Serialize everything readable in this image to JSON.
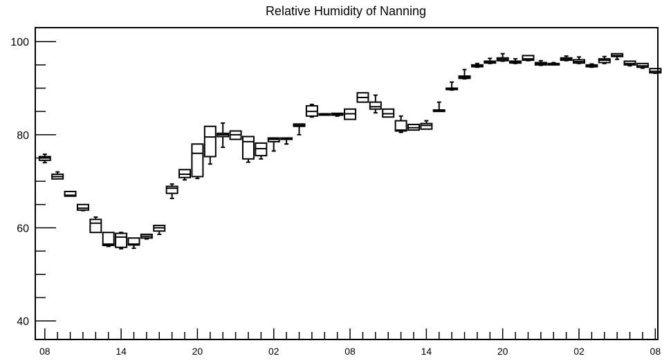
{
  "chart_data": {
    "type": "box",
    "title": "Relative Humidity of Nanning",
    "xlabel": "",
    "ylabel": "",
    "ylim": [
      36,
      103
    ],
    "yticks": [
      40,
      60,
      80,
      100
    ],
    "x_tick_labels": [
      "08",
      "14",
      "20",
      "02",
      "08",
      "14",
      "20",
      "02",
      "08"
    ],
    "x_index_range": [
      -0.75,
      48.2
    ],
    "grid": false,
    "legend": "none",
    "colors": {
      "stroke": "#000000",
      "background": "#ffffff"
    },
    "boxes": [
      {
        "x": 0,
        "min": 74.0,
        "q1": 74.5,
        "median": 75.0,
        "q3": 75.3,
        "max": 75.8
      },
      {
        "x": 1,
        "min": 70.5,
        "q1": 70.5,
        "median": 71.0,
        "q3": 71.5,
        "max": 72.0
      },
      {
        "x": 2,
        "min": 66.8,
        "q1": 66.8,
        "median": 67.0,
        "q3": 67.8,
        "max": 67.8
      },
      {
        "x": 3,
        "min": 63.7,
        "q1": 63.8,
        "median": 64.2,
        "q3": 65.0,
        "max": 65.0
      },
      {
        "x": 4,
        "min": 59.0,
        "q1": 59.0,
        "median": 61.0,
        "q3": 61.8,
        "max": 62.3
      },
      {
        "x": 5,
        "min": 56.0,
        "q1": 56.2,
        "median": 56.5,
        "q3": 59.0,
        "max": 59.0
      },
      {
        "x": 6,
        "min": 55.5,
        "q1": 55.8,
        "median": 58.0,
        "q3": 58.8,
        "max": 59.0
      },
      {
        "x": 7,
        "min": 55.6,
        "q1": 56.3,
        "median": 56.5,
        "q3": 57.8,
        "max": 57.8
      },
      {
        "x": 8,
        "min": 57.6,
        "q1": 57.8,
        "median": 58.2,
        "q3": 58.6,
        "max": 58.6
      },
      {
        "x": 9,
        "min": 58.6,
        "q1": 59.3,
        "median": 60.0,
        "q3": 60.5,
        "max": 60.5
      },
      {
        "x": 10,
        "min": 66.3,
        "q1": 67.4,
        "median": 68.5,
        "q3": 68.9,
        "max": 69.4
      },
      {
        "x": 11,
        "min": 70.3,
        "q1": 70.8,
        "median": 71.5,
        "q3": 72.5,
        "max": 72.5
      },
      {
        "x": 12,
        "min": 70.6,
        "q1": 71.0,
        "median": 76.0,
        "q3": 78.0,
        "max": 78.0
      },
      {
        "x": 13,
        "min": 73.7,
        "q1": 75.3,
        "median": 79.5,
        "q3": 81.8,
        "max": 81.8
      },
      {
        "x": 14,
        "min": 77.3,
        "q1": 79.6,
        "median": 80.0,
        "q3": 80.3,
        "max": 82.5
      },
      {
        "x": 15,
        "min": 79.0,
        "q1": 79.0,
        "median": 80.0,
        "q3": 80.8,
        "max": 80.8
      },
      {
        "x": 16,
        "min": 74.1,
        "q1": 74.8,
        "median": 78.5,
        "q3": 79.6,
        "max": 79.6
      },
      {
        "x": 17,
        "min": 74.8,
        "q1": 75.5,
        "median": 77.0,
        "q3": 78.2,
        "max": 78.2
      },
      {
        "x": 18,
        "min": 76.5,
        "q1": 78.5,
        "median": 79.0,
        "q3": 79.3,
        "max": 79.3
      },
      {
        "x": 19,
        "min": 78.0,
        "q1": 79.0,
        "median": 79.2,
        "q3": 79.3,
        "max": 79.3
      },
      {
        "x": 20,
        "min": 80.0,
        "q1": 81.8,
        "median": 82.0,
        "q3": 82.3,
        "max": 82.3
      },
      {
        "x": 21,
        "min": 83.8,
        "q1": 84.0,
        "median": 85.0,
        "q3": 86.2,
        "max": 86.5
      },
      {
        "x": 22,
        "min": 84.5,
        "q1": 84.5,
        "median": 84.5,
        "q3": 84.5,
        "max": 84.5
      },
      {
        "x": 23,
        "min": 84.0,
        "q1": 84.2,
        "median": 84.4,
        "q3": 84.6,
        "max": 84.6
      },
      {
        "x": 24,
        "min": 83.3,
        "q1": 83.3,
        "median": 84.5,
        "q3": 85.5,
        "max": 85.5
      },
      {
        "x": 25,
        "min": 87.0,
        "q1": 87.0,
        "median": 88.0,
        "q3": 89.0,
        "max": 89.0
      },
      {
        "x": 26,
        "min": 84.7,
        "q1": 85.5,
        "median": 86.0,
        "q3": 87.0,
        "max": 88.5
      },
      {
        "x": 27,
        "min": 83.8,
        "q1": 83.8,
        "median": 84.5,
        "q3": 85.5,
        "max": 85.5
      },
      {
        "x": 28,
        "min": 80.5,
        "q1": 80.8,
        "median": 81.0,
        "q3": 83.0,
        "max": 84.0
      },
      {
        "x": 29,
        "min": 81.0,
        "q1": 81.0,
        "median": 81.5,
        "q3": 82.2,
        "max": 82.2
      },
      {
        "x": 30,
        "min": 81.2,
        "q1": 81.2,
        "median": 82.0,
        "q3": 82.4,
        "max": 83.0
      },
      {
        "x": 31,
        "min": 85.2,
        "q1": 85.2,
        "median": 85.3,
        "q3": 85.3,
        "max": 87.0
      },
      {
        "x": 32,
        "min": 89.6,
        "q1": 89.7,
        "median": 89.8,
        "q3": 90.0,
        "max": 91.3
      },
      {
        "x": 33,
        "min": 92.0,
        "q1": 92.1,
        "median": 92.3,
        "q3": 92.6,
        "max": 94.0
      },
      {
        "x": 34,
        "min": 94.5,
        "q1": 94.6,
        "median": 94.8,
        "q3": 95.0,
        "max": 95.3
      },
      {
        "x": 35,
        "min": 95.3,
        "q1": 95.4,
        "median": 95.6,
        "q3": 95.8,
        "max": 96.4
      },
      {
        "x": 36,
        "min": 95.8,
        "q1": 95.9,
        "median": 96.2,
        "q3": 96.5,
        "max": 97.4
      },
      {
        "x": 37,
        "min": 95.3,
        "q1": 95.4,
        "median": 95.6,
        "q3": 95.8,
        "max": 96.3
      },
      {
        "x": 38,
        "min": 95.9,
        "q1": 96.0,
        "median": 96.3,
        "q3": 97.0,
        "max": 97.0
      },
      {
        "x": 39,
        "min": 94.9,
        "q1": 95.0,
        "median": 95.2,
        "q3": 95.5,
        "max": 95.9
      },
      {
        "x": 40,
        "min": 95.0,
        "q1": 95.1,
        "median": 95.2,
        "q3": 95.3,
        "max": 95.5
      },
      {
        "x": 41,
        "min": 95.9,
        "q1": 96.0,
        "median": 96.3,
        "q3": 96.5,
        "max": 96.9
      },
      {
        "x": 42,
        "min": 95.3,
        "q1": 95.4,
        "median": 95.7,
        "q3": 96.1,
        "max": 96.7
      },
      {
        "x": 43,
        "min": 94.5,
        "q1": 94.6,
        "median": 94.8,
        "q3": 95.0,
        "max": 95.2
      },
      {
        "x": 44,
        "min": 95.3,
        "q1": 95.5,
        "median": 96.0,
        "q3": 96.3,
        "max": 96.8
      },
      {
        "x": 45,
        "min": 96.2,
        "q1": 96.8,
        "median": 97.0,
        "q3": 97.4,
        "max": 97.4
      },
      {
        "x": 46,
        "min": 94.8,
        "q1": 95.0,
        "median": 95.3,
        "q3": 95.8,
        "max": 95.8
      },
      {
        "x": 47,
        "min": 94.3,
        "q1": 94.5,
        "median": 94.8,
        "q3": 95.3,
        "max": 95.3
      },
      {
        "x": 48,
        "min": 93.2,
        "q1": 93.3,
        "median": 93.6,
        "q3": 94.2,
        "max": 94.2
      }
    ]
  }
}
